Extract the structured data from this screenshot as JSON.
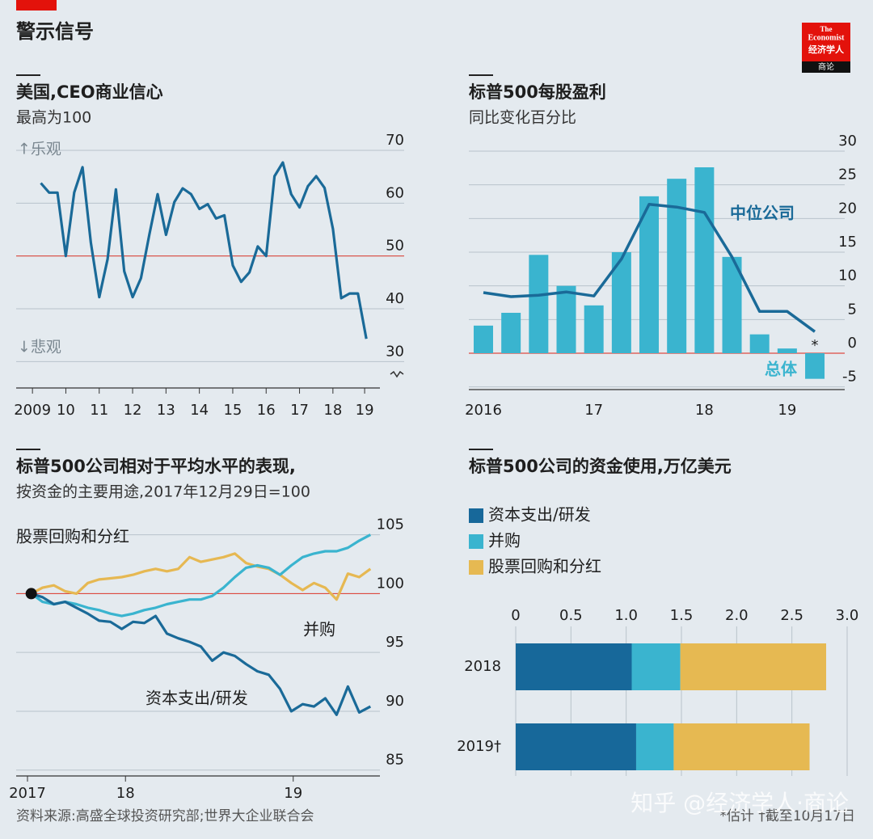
{
  "header": {
    "title": "警示信号",
    "logo": [
      "The",
      "Economist",
      "经济学人",
      "商论"
    ]
  },
  "chart_data": [
    {
      "type": "line",
      "title": "美国,CEO商业信心",
      "subtitle": "最高为100",
      "annotations": [
        "↑乐观",
        "↓悲观"
      ],
      "x": [
        2009.75,
        2010,
        2010.25,
        2010.5,
        2010.75,
        2011,
        2011.25,
        2011.5,
        2011.75,
        2012,
        2012.25,
        2012.5,
        2012.75,
        2013,
        2013.25,
        2013.5,
        2013.75,
        2014,
        2014.25,
        2014.5,
        2014.75,
        2015,
        2015.25,
        2015.5,
        2015.75,
        2016,
        2016.25,
        2016.5,
        2016.75,
        2017,
        2017.25,
        2017.5,
        2017.75,
        2018,
        2018.25,
        2018.5,
        2018.75,
        2019,
        2019.25,
        2019.5
      ],
      "values": [
        63.8,
        62,
        62,
        50,
        62,
        66.8,
        52.5,
        42.2,
        49.4,
        62.6,
        47.1,
        42.2,
        45.8,
        54,
        61.7,
        54,
        60.2,
        62.8,
        61.7,
        58.9,
        59.8,
        57.1,
        57.7,
        48.2,
        45.1,
        46.9,
        51.8,
        50,
        65.1,
        67.7,
        61.7,
        59.2,
        63.2,
        65.1,
        62.9,
        55.1,
        42,
        42.9,
        42.9,
        34.3
      ],
      "color": "#1a6a98",
      "xlim": [
        2009,
        2020
      ],
      "xticks": [
        {
          "value": 2009.5,
          "label": "2009"
        },
        {
          "value": 2010.5,
          "label": "10"
        },
        {
          "value": 2011.5,
          "label": "11"
        },
        {
          "value": 2012.5,
          "label": "12"
        },
        {
          "value": 2013.5,
          "label": "13"
        },
        {
          "value": 2014.5,
          "label": "14"
        },
        {
          "value": 2015.5,
          "label": "15"
        },
        {
          "value": 2016.5,
          "label": "16"
        },
        {
          "value": 2017.5,
          "label": "17"
        },
        {
          "value": 2018.5,
          "label": "18"
        },
        {
          "value": 2019.45,
          "label": "19"
        }
      ],
      "ylim": [
        25,
        70
      ],
      "yticks": [
        70,
        60,
        50,
        40,
        30
      ],
      "grid": true,
      "ref_y": 50,
      "ref_color": "#de4a40"
    },
    {
      "type": "combo",
      "title": "标普500每股盈利",
      "subtitle": "同比变化百分比",
      "annotations": [
        "*"
      ],
      "categories": [
        "2016",
        null,
        null,
        null,
        "17",
        null,
        null,
        null,
        "18",
        null,
        null,
        "19",
        null
      ],
      "series": [
        {
          "name": "总体",
          "type": "bar",
          "color": "#3ab4cf",
          "values": [
            4.1,
            6,
            14.6,
            10,
            7.1,
            15,
            23.3,
            25.9,
            27.6,
            14.3,
            2.8,
            0.7,
            -3.8
          ]
        },
        {
          "name": "中位公司",
          "type": "line",
          "color": "#1a6a98",
          "values": [
            9,
            8.4,
            8.6,
            9.1,
            8.5,
            14,
            22.1,
            21.7,
            20.9,
            14.3,
            6.2,
            6.2,
            3.2
          ]
        }
      ],
      "ylim": [
        -5.4,
        30
      ],
      "yticks": [
        30,
        25,
        20,
        15,
        10,
        5,
        0,
        -5
      ],
      "grid": true,
      "ref_y": 0,
      "ref_color": "#de4a40"
    },
    {
      "type": "line",
      "title": "标普500公司相对于平均水平的表现,",
      "subtitle": "按资金的主要用途,2017年12月29日=100",
      "x": [
        2018,
        2018.06,
        2018.12,
        2018.18,
        2018.24,
        2018.3,
        2018.36,
        2018.42,
        2018.48,
        2018.54,
        2018.6,
        2018.66,
        2018.72,
        2018.78,
        2018.84,
        2018.9,
        2018.96,
        2019.02,
        2019.08,
        2019.14,
        2019.2,
        2019.26,
        2019.32,
        2019.38,
        2019.44,
        2019.5,
        2019.56,
        2019.62,
        2019.68,
        2019.74,
        2019.8
      ],
      "series": [
        {
          "name": "股票回购和分红",
          "color": "#e6b852",
          "values": [
            100,
            100.5,
            100.7,
            100.2,
            100,
            100.9,
            101.2,
            101.3,
            101.4,
            101.6,
            101.9,
            102.1,
            101.9,
            102.1,
            103.1,
            102.7,
            102.9,
            103.1,
            103.4,
            102.6,
            102.3,
            102.1,
            101.6,
            100.9,
            100.3,
            100.9,
            100.5,
            99.5,
            101.7,
            101.4,
            102.1
          ]
        },
        {
          "name": "并购",
          "color": "#3ab4cf",
          "values": [
            100,
            99.3,
            99.1,
            99.3,
            99.1,
            98.8,
            98.6,
            98.3,
            98.1,
            98.3,
            98.6,
            98.8,
            99.1,
            99.3,
            99.5,
            99.5,
            99.8,
            100.5,
            101.4,
            102.2,
            102.4,
            102.2,
            101.6,
            102.4,
            103.1,
            103.4,
            103.6,
            103.6,
            103.9,
            104.5,
            105
          ]
        },
        {
          "name": "资本支出/研发",
          "color": "#1a6a98",
          "values": [
            100,
            99.7,
            99.1,
            99.3,
            98.8,
            98.3,
            97.7,
            97.6,
            97,
            97.6,
            97.5,
            98.1,
            96.6,
            96.2,
            95.9,
            95.5,
            94.3,
            95,
            94.7,
            94,
            93.4,
            93.1,
            91.9,
            90,
            90.6,
            90.4,
            91.1,
            89.7,
            92.1,
            89.9,
            90.4
          ]
        }
      ],
      "xlim": [
        2017.92,
        2019.85
      ],
      "xticks": [
        {
          "value": 2017.98,
          "label": "2017"
        },
        {
          "value": 2018.5,
          "label": "18"
        },
        {
          "value": 2019.39,
          "label": "19"
        }
      ],
      "ylim": [
        84.5,
        105.8
      ],
      "yticks": [
        105,
        100,
        95,
        90,
        85
      ],
      "grid": true,
      "ref_y": 100,
      "ref_color": "#de4a40",
      "start_marker": true
    },
    {
      "type": "barh",
      "title": "标普500公司的资金使用,万亿美元",
      "stacked": true,
      "legend": "top-left",
      "categories": [
        "2018",
        "2019†"
      ],
      "series": [
        {
          "name": "资本支出/研发",
          "color": "#17689a",
          "values": [
            1.05,
            1.09
          ]
        },
        {
          "name": "并购",
          "color": "#3ab4cf",
          "values": [
            0.44,
            0.34
          ]
        },
        {
          "name": "股票回购和分红",
          "color": "#e6b952",
          "values": [
            1.32,
            1.23
          ]
        }
      ],
      "xlim": [
        0,
        3
      ],
      "xticks": [
        0,
        0.5,
        {
          "value": 1,
          "label": "1.0"
        },
        1.5,
        {
          "value": 2,
          "label": "2.0"
        },
        2.5,
        {
          "value": 3,
          "label": "3.0"
        }
      ],
      "grid": true
    }
  ],
  "footer": {
    "source": "资料来源:高盛全球投资研究部;世界大企业联合会",
    "notes": "*估计 †截至10月17日",
    "watermark": "知乎 @经济学人·商论"
  }
}
